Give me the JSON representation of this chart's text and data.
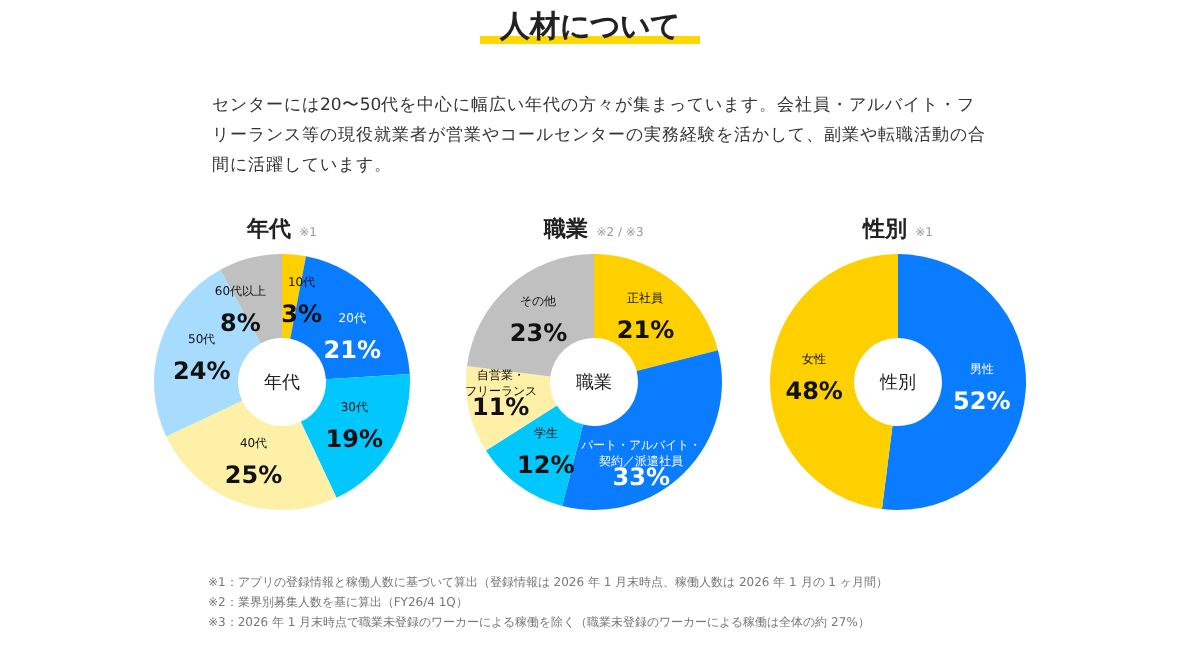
{
  "chart_data": [
    {
      "type": "donut",
      "title": "年代",
      "subtitle": "※1",
      "annotations": [
        "人材について",
        "センターには20〜50代を中心に幅広い年代の方々が集まっています。会社員・アルバイト・フリーランス等の現役就業者が営業やコールセンターの実務経験を活かして、副業や転職活動の合間に活躍しています。"
      ],
      "categories": [
        "10代",
        "20代",
        "30代",
        "40代",
        "50代",
        "60代以上"
      ],
      "values": [
        3,
        21,
        19,
        25,
        24,
        8
      ],
      "colors": [
        "#ffd000",
        "#0a7cff",
        "#00c8ff",
        "#fff0a8",
        "#a8dcff",
        "#c0c0c0"
      ],
      "value_labels": [
        "3%",
        "21%",
        "19%",
        "25%",
        "24%",
        "8%"
      ]
    },
    {
      "type": "donut",
      "title": "職業",
      "subtitle": "※2 / ※3",
      "categories": [
        "正社員",
        "パート・アルバイト・契約／派遣社員",
        "学生",
        "自営業・フリーランス",
        "その他"
      ],
      "values": [
        21,
        33,
        12,
        11,
        23
      ],
      "colors": [
        "#ffd000",
        "#0a7cff",
        "#00c8ff",
        "#fff0a8",
        "#c0c0c0"
      ],
      "value_labels": [
        "21%",
        "33%",
        "12%",
        "11%",
        "23%"
      ]
    },
    {
      "type": "donut",
      "title": "性別",
      "subtitle": "※1",
      "annotations": [
        "※1：アプリの登録情報と稼働人数に基づいて算出（登録情報は 2026 年 1 月末時点、稼働人数は 2026 年 1 月の 1 ヶ月間）",
        "※2：業界別募集人数を基に算出（FY26/4 1Q）",
        "※3：2026 年 1 月末時点で職業未登録のワーカーによる稼働を除く（職業未登録のワーカーによる稼働は全体の約 27%）"
      ],
      "categories": [
        "男性",
        "女性"
      ],
      "values": [
        52,
        48
      ],
      "colors": [
        "#0a7cff",
        "#ffd000"
      ],
      "value_labels": [
        "52%",
        "48%"
      ]
    }
  ]
}
